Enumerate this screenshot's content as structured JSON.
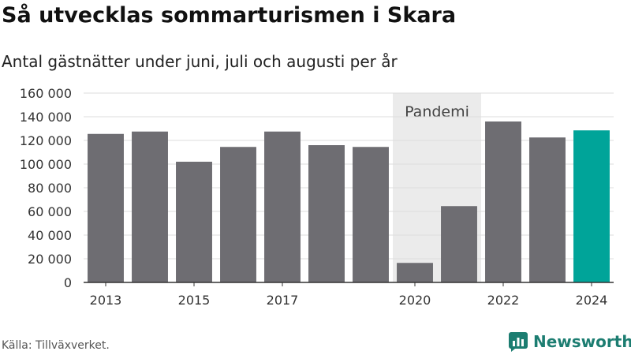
{
  "title": "Så utvecklas sommarturismen i Skara",
  "subtitle": "Antal gästnätter under juni, juli och augusti per år",
  "source": "Källa: Tillväxverket.",
  "brand": {
    "name": "Newsworthy",
    "icon": "bar-chart-logo-icon"
  },
  "colors": {
    "bar": "#6e6d72",
    "highlight": "#00a499",
    "band": "#ebebeb",
    "grid": "#dddddd",
    "brand": "#1c7d71"
  },
  "chart_data": {
    "type": "bar",
    "categories": [
      "2013",
      "2014",
      "2015",
      "2016",
      "2017",
      "2018",
      "2019",
      "2020",
      "2021",
      "2022",
      "2023",
      "2024"
    ],
    "x_tick_labels": [
      "2013",
      "",
      "2015",
      "",
      "2017",
      "",
      "",
      "2020",
      "",
      "2022",
      "",
      "2024"
    ],
    "values": [
      125500,
      127500,
      102000,
      114500,
      127500,
      116000,
      114500,
      16500,
      64500,
      136000,
      122500,
      128500
    ],
    "highlight_category": "2024",
    "ylim": [
      0,
      160000
    ],
    "y_ticks": [
      0,
      20000,
      40000,
      60000,
      80000,
      100000,
      120000,
      140000,
      160000
    ],
    "y_tick_labels": [
      "0",
      "20 000",
      "40 000",
      "60 000",
      "80 000",
      "100 000",
      "120 000",
      "140 000",
      "160 000"
    ],
    "grid": true,
    "annotation": {
      "label": "Pandemi",
      "from": "2020",
      "to": "2021"
    }
  }
}
